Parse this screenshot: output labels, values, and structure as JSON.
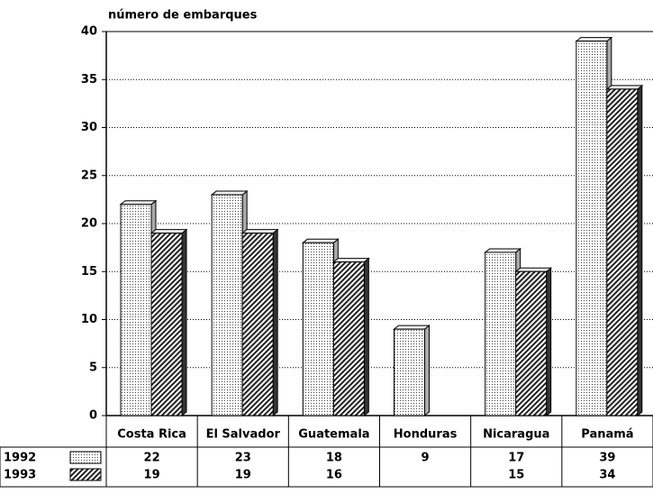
{
  "chart_data": {
    "type": "bar",
    "y_label": "número de embarques",
    "categories": [
      "Costa Rica",
      "El Salvador",
      "Guatemala",
      "Honduras",
      "Nicaragua",
      "Panamá"
    ],
    "series": [
      {
        "name": "1992",
        "color": "#d9d9d9",
        "values": [
          22,
          23,
          18,
          9,
          17,
          39
        ]
      },
      {
        "name": "1993",
        "color": "#555555",
        "values": [
          19,
          19,
          16,
          null,
          15,
          34
        ]
      }
    ],
    "ylim": [
      0,
      40
    ],
    "yticks": [
      0,
      5,
      10,
      15,
      20,
      25,
      30,
      35,
      40
    ],
    "grid": true
  }
}
